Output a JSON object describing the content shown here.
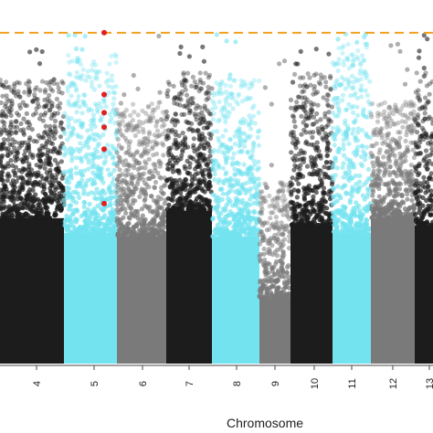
{
  "chart_data": {
    "type": "scatter",
    "xlabel": "Chromosome",
    "ylabel": "",
    "title": "",
    "categories": [
      "4",
      "5",
      "6",
      "7",
      "8",
      "9",
      "10",
      "11",
      "12",
      "13"
    ],
    "chromosome_colors": [
      "#1c1c1c",
      "#74e3f0",
      "#7a7a7a",
      "#1c1c1c",
      "#74e3f0",
      "#7a7a7a",
      "#1c1c1c",
      "#74e3f0",
      "#7a7a7a",
      "#1c1c1c"
    ],
    "dense_level": [
      0.4,
      0.36,
      0.35,
      0.42,
      0.35,
      0.18,
      0.38,
      0.36,
      0.4,
      0.38
    ],
    "upper_tail": [
      0.78,
      0.85,
      0.72,
      0.8,
      0.78,
      0.5,
      0.8,
      0.88,
      0.72,
      0.8
    ],
    "threshold": {
      "level": 0.91,
      "color": "#f0a020",
      "style": "dashed"
    },
    "highlighted_points": {
      "chromosome": "5",
      "color": "#e02020",
      "levels": [
        0.91,
        0.74,
        0.69,
        0.65,
        0.59,
        0.44
      ]
    },
    "grid": false,
    "legend": "none"
  }
}
